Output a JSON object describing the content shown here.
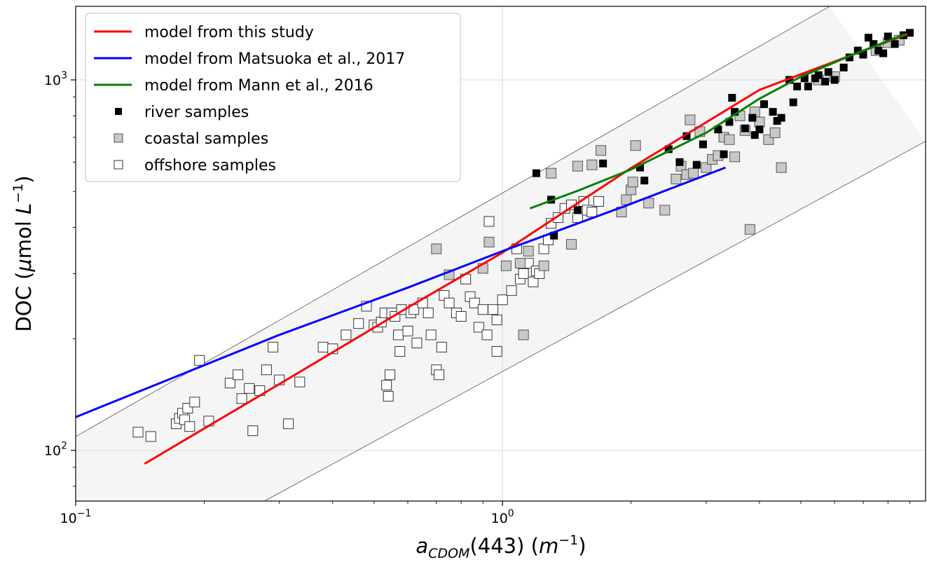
{
  "chart_data": {
    "type": "scatter",
    "scale": {
      "x": "log",
      "y": "log"
    },
    "xlim": [
      0.1,
      9.8
    ],
    "ylim": [
      73,
      1580
    ],
    "grid": "major, light",
    "xticks": [
      {
        "value": 0.1,
        "base": "10",
        "exp": "−1"
      },
      {
        "value": 1,
        "base": "10",
        "exp": "0"
      }
    ],
    "yticks": [
      {
        "value": 100,
        "base": "10",
        "exp": "2"
      },
      {
        "value": 1000,
        "base": "10",
        "exp": "3"
      }
    ],
    "xlabel": {
      "main": "a",
      "sub": "CDOM",
      "rest": "(443) (",
      "unit": "m",
      "sup": "−1",
      "close": ")"
    },
    "ylabel": {
      "prefix": "DOC (",
      "mu": "μ",
      "mid": "mol ",
      "unit": "L",
      "sup": "−1",
      "close": ")"
    },
    "legend": {
      "placement": "upper-left"
    },
    "band": {
      "upper": [
        [
          0.1,
          109
        ],
        [
          5.84,
          1580
        ]
      ],
      "lower": [
        [
          0.277,
          73
        ],
        [
          9.8,
          683
        ]
      ]
    },
    "series": [
      {
        "name": "model from this study",
        "kind": "line",
        "color": "#ff0000",
        "points": [
          [
            0.145,
            92
          ],
          [
            0.3,
            151
          ],
          [
            0.6,
            243
          ],
          [
            1,
            342
          ],
          [
            2,
            578
          ],
          [
            4,
            940
          ],
          [
            8.9,
            1330
          ]
        ]
      },
      {
        "name": "model from Matsuoka et al., 2017",
        "kind": "line",
        "color": "#0000ff",
        "points": [
          [
            0.1,
            123
          ],
          [
            0.3,
            205
          ],
          [
            0.6,
            275
          ],
          [
            1,
            345
          ],
          [
            2,
            463
          ],
          [
            3.33,
            580
          ]
        ]
      },
      {
        "name": "model from Mann et al., 2016",
        "kind": "line",
        "color": "#008000",
        "points": [
          [
            1.16,
            450
          ],
          [
            1.5,
            502
          ],
          [
            2,
            573
          ],
          [
            3,
            720
          ],
          [
            4,
            890
          ],
          [
            5,
            1020
          ],
          [
            6.5,
            1160
          ],
          [
            8.8,
            1330
          ]
        ]
      },
      {
        "name": "river samples",
        "kind": "scatter",
        "marker": "filled-square",
        "color": "#000000",
        "points": [
          [
            1.2,
            560
          ],
          [
            1.3,
            475
          ],
          [
            1.32,
            380
          ],
          [
            1.5,
            445
          ],
          [
            1.72,
            595
          ],
          [
            2.1,
            580
          ],
          [
            2.15,
            535
          ],
          [
            2.45,
            650
          ],
          [
            2.6,
            600
          ],
          [
            2.7,
            705
          ],
          [
            2.85,
            590
          ],
          [
            2.95,
            670
          ],
          [
            3.2,
            735
          ],
          [
            3.3,
            630
          ],
          [
            3.4,
            770
          ],
          [
            3.45,
            895
          ],
          [
            3.5,
            820
          ],
          [
            3.7,
            740
          ],
          [
            3.85,
            790
          ],
          [
            3.9,
            710
          ],
          [
            4.0,
            735
          ],
          [
            4.1,
            860
          ],
          [
            4.3,
            820
          ],
          [
            4.4,
            775
          ],
          [
            4.5,
            790
          ],
          [
            4.7,
            1000
          ],
          [
            4.8,
            870
          ],
          [
            4.9,
            960
          ],
          [
            5.1,
            1010
          ],
          [
            5.2,
            960
          ],
          [
            5.4,
            1010
          ],
          [
            5.5,
            1030
          ],
          [
            5.7,
            990
          ],
          [
            5.8,
            1050
          ],
          [
            6.0,
            1000
          ],
          [
            6.3,
            1080
          ],
          [
            6.5,
            1150
          ],
          [
            6.8,
            1200
          ],
          [
            7.0,
            1170
          ],
          [
            7.2,
            1300
          ],
          [
            7.4,
            1250
          ],
          [
            7.6,
            1200
          ],
          [
            7.8,
            1180
          ],
          [
            8.0,
            1310
          ],
          [
            8.3,
            1250
          ],
          [
            8.7,
            1320
          ],
          [
            9.0,
            1340
          ]
        ]
      },
      {
        "name": "coastal samples",
        "kind": "scatter",
        "marker": "grey-square",
        "color": "#c8c8c8",
        "points": [
          [
            0.7,
            350
          ],
          [
            0.75,
            298
          ],
          [
            0.9,
            310
          ],
          [
            0.93,
            365
          ],
          [
            1.02,
            315
          ],
          [
            1.1,
            320
          ],
          [
            1.12,
            205
          ],
          [
            1.15,
            345
          ],
          [
            1.25,
            315
          ],
          [
            1.3,
            560
          ],
          [
            1.45,
            360
          ],
          [
            1.5,
            585
          ],
          [
            1.62,
            590
          ],
          [
            1.7,
            645
          ],
          [
            1.9,
            440
          ],
          [
            1.95,
            475
          ],
          [
            2.0,
            505
          ],
          [
            2.02,
            530
          ],
          [
            2.05,
            665
          ],
          [
            2.2,
            465
          ],
          [
            2.4,
            445
          ],
          [
            2.55,
            540
          ],
          [
            2.62,
            585
          ],
          [
            2.7,
            555
          ],
          [
            2.75,
            780
          ],
          [
            2.8,
            560
          ],
          [
            2.9,
            725
          ],
          [
            3.0,
            580
          ],
          [
            3.1,
            610
          ],
          [
            3.2,
            625
          ],
          [
            3.3,
            700
          ],
          [
            3.4,
            690
          ],
          [
            3.5,
            620
          ],
          [
            3.6,
            800
          ],
          [
            3.7,
            730
          ],
          [
            3.8,
            395
          ],
          [
            3.9,
            820
          ],
          [
            4.0,
            770
          ],
          [
            4.2,
            690
          ],
          [
            4.35,
            720
          ],
          [
            4.5,
            580
          ],
          [
            5.5,
            1000
          ],
          [
            6.0,
            1020
          ],
          [
            7.5,
            1200
          ],
          [
            8.0,
            1260
          ],
          [
            8.5,
            1280
          ]
        ]
      },
      {
        "name": "offshore samples",
        "kind": "scatter",
        "marker": "open-square",
        "color": "#ffffff",
        "points": [
          [
            0.14,
            112
          ],
          [
            0.15,
            109
          ],
          [
            0.172,
            118
          ],
          [
            0.175,
            122
          ],
          [
            0.178,
            126
          ],
          [
            0.18,
            121
          ],
          [
            0.183,
            130
          ],
          [
            0.185,
            116
          ],
          [
            0.19,
            135
          ],
          [
            0.195,
            175
          ],
          [
            0.205,
            120
          ],
          [
            0.23,
            152
          ],
          [
            0.24,
            160
          ],
          [
            0.245,
            138
          ],
          [
            0.255,
            147
          ],
          [
            0.26,
            113
          ],
          [
            0.27,
            145
          ],
          [
            0.28,
            165
          ],
          [
            0.29,
            190
          ],
          [
            0.3,
            155
          ],
          [
            0.315,
            118
          ],
          [
            0.335,
            153
          ],
          [
            0.38,
            190
          ],
          [
            0.4,
            188
          ],
          [
            0.43,
            205
          ],
          [
            0.46,
            220
          ],
          [
            0.48,
            245
          ],
          [
            0.5,
            218
          ],
          [
            0.51,
            215
          ],
          [
            0.52,
            222
          ],
          [
            0.53,
            235
          ],
          [
            0.535,
            150
          ],
          [
            0.54,
            140
          ],
          [
            0.545,
            160
          ],
          [
            0.55,
            235
          ],
          [
            0.56,
            230
          ],
          [
            0.57,
            205
          ],
          [
            0.575,
            185
          ],
          [
            0.58,
            240
          ],
          [
            0.6,
            210
          ],
          [
            0.61,
            235
          ],
          [
            0.62,
            240
          ],
          [
            0.63,
            195
          ],
          [
            0.65,
            250
          ],
          [
            0.67,
            235
          ],
          [
            0.68,
            205
          ],
          [
            0.7,
            165
          ],
          [
            0.71,
            160
          ],
          [
            0.72,
            190
          ],
          [
            0.73,
            262
          ],
          [
            0.75,
            250
          ],
          [
            0.78,
            235
          ],
          [
            0.8,
            230
          ],
          [
            0.82,
            290
          ],
          [
            0.84,
            260
          ],
          [
            0.86,
            250
          ],
          [
            0.88,
            215
          ],
          [
            0.9,
            240
          ],
          [
            0.92,
            205
          ],
          [
            0.95,
            240
          ],
          [
            0.97,
            225
          ],
          [
            1.0,
            255
          ],
          [
            1.05,
            270
          ],
          [
            1.08,
            350
          ],
          [
            1.1,
            290
          ],
          [
            1.12,
            300
          ],
          [
            1.15,
            320
          ],
          [
            1.18,
            285
          ],
          [
            1.2,
            305
          ],
          [
            1.22,
            300
          ],
          [
            1.25,
            350
          ],
          [
            1.28,
            370
          ],
          [
            1.3,
            410
          ],
          [
            1.35,
            425
          ],
          [
            1.4,
            450
          ],
          [
            1.45,
            460
          ],
          [
            1.5,
            425
          ],
          [
            1.55,
            470
          ],
          [
            1.58,
            445
          ],
          [
            1.62,
            440
          ],
          [
            1.68,
            470
          ],
          [
            0.97,
            185
          ],
          [
            0.93,
            415
          ]
        ]
      }
    ]
  }
}
